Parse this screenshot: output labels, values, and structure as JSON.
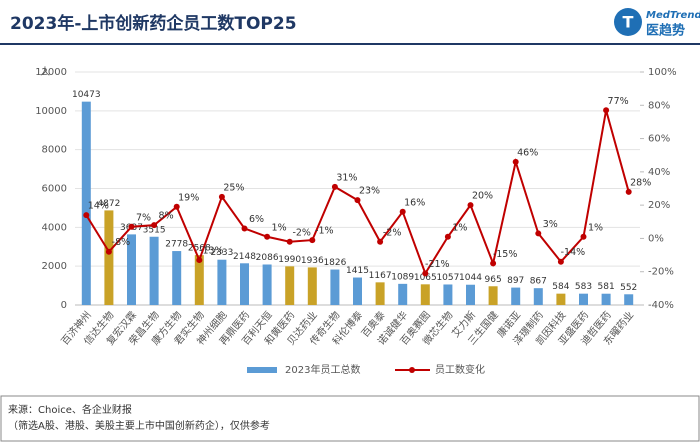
{
  "header": {
    "logo": "MedTrend",
    "logo_sub": "医趋势"
  },
  "chart_data": {
    "type": "combo",
    "title": "2023年-上市创新药企员工数TOP25",
    "y_label": "人",
    "categories": [
      "百济神州",
      "信达生物",
      "复宏汉霖",
      "荣昌生物",
      "康方生物",
      "君实生物",
      "神州细胞",
      "再鼎医药",
      "百利天恒",
      "和黄医药",
      "贝达药业",
      "传奇生物",
      "科伦博泰",
      "百奥泰",
      "诺诚健华",
      "百奥赛图",
      "微芯生物",
      "艾力斯",
      "三生国健",
      "康诺亚",
      "泽璟制药",
      "凯因科技",
      "亚盛医药",
      "迪哲医药",
      "东曜药业"
    ],
    "series": [
      {
        "name": "2023年员工总数",
        "color": "#5b9bd5",
        "colors": [
          "#5b9bd5",
          "#c9a227",
          "#5b9bd5",
          "#5b9bd5",
          "#5b9bd5",
          "#c9a227",
          "#5b9bd5",
          "#5b9bd5",
          "#5b9bd5",
          "#c9a227",
          "#c9a227",
          "#5b9bd5",
          "#5b9bd5",
          "#c9a227",
          "#5b9bd5",
          "#c9a227",
          "#5b9bd5",
          "#5b9bd5",
          "#c9a227",
          "#5b9bd5",
          "#5b9bd5",
          "#c9a227",
          "#5b9bd5",
          "#5b9bd5",
          "#5b9bd5"
        ],
        "values": [
          10473,
          4872,
          3637,
          3515,
          2778,
          2568,
          2333,
          2148,
          2086,
          1990,
          1936,
          1826,
          1415,
          1167,
          1089,
          1065,
          1057,
          1044,
          965,
          897,
          867,
          584,
          583,
          581,
          552
        ]
      },
      {
        "name": "员工数变化",
        "color": "#c00000",
        "axis": "y2",
        "values": [
          14,
          -8,
          7,
          8,
          19,
          -13,
          25,
          6,
          1,
          -2,
          -1,
          31,
          23,
          -2,
          16,
          -21,
          1,
          20,
          -15,
          46,
          3,
          -14,
          1,
          77,
          28
        ],
        "value_labels": [
          "14%",
          "-8%",
          "7%",
          "8%",
          "19%",
          "-13%",
          "25%",
          "6%",
          "1%",
          "-2%",
          "-1%",
          "31%",
          "23%",
          "-2%",
          "16%",
          "-21%",
          "1%",
          "20%",
          "-15%",
          "46%",
          "3%",
          "-14%",
          "1%",
          "77%",
          "28%"
        ]
      }
    ],
    "ylim": [
      0,
      12000
    ],
    "yticks": [
      0,
      2000,
      4000,
      6000,
      8000,
      10000,
      12000
    ],
    "y2lim": [
      -40,
      100
    ],
    "y2ticks": [
      {
        "value": -40,
        "label": "-40%"
      },
      {
        "value": -20,
        "label": "-20%"
      },
      {
        "value": 0,
        "label": "0%"
      },
      {
        "value": 20,
        "label": "20%"
      },
      {
        "value": 40,
        "label": "40%"
      },
      {
        "value": 60,
        "label": "60%"
      },
      {
        "value": 80,
        "label": "80%"
      },
      {
        "value": 100,
        "label": "100%"
      }
    ],
    "grid": true
  },
  "footer": {
    "source": "来源：Choice、各企业财报",
    "note": "（筛选A股、港股、美股主要上市中国创新药企），仅供参考"
  }
}
